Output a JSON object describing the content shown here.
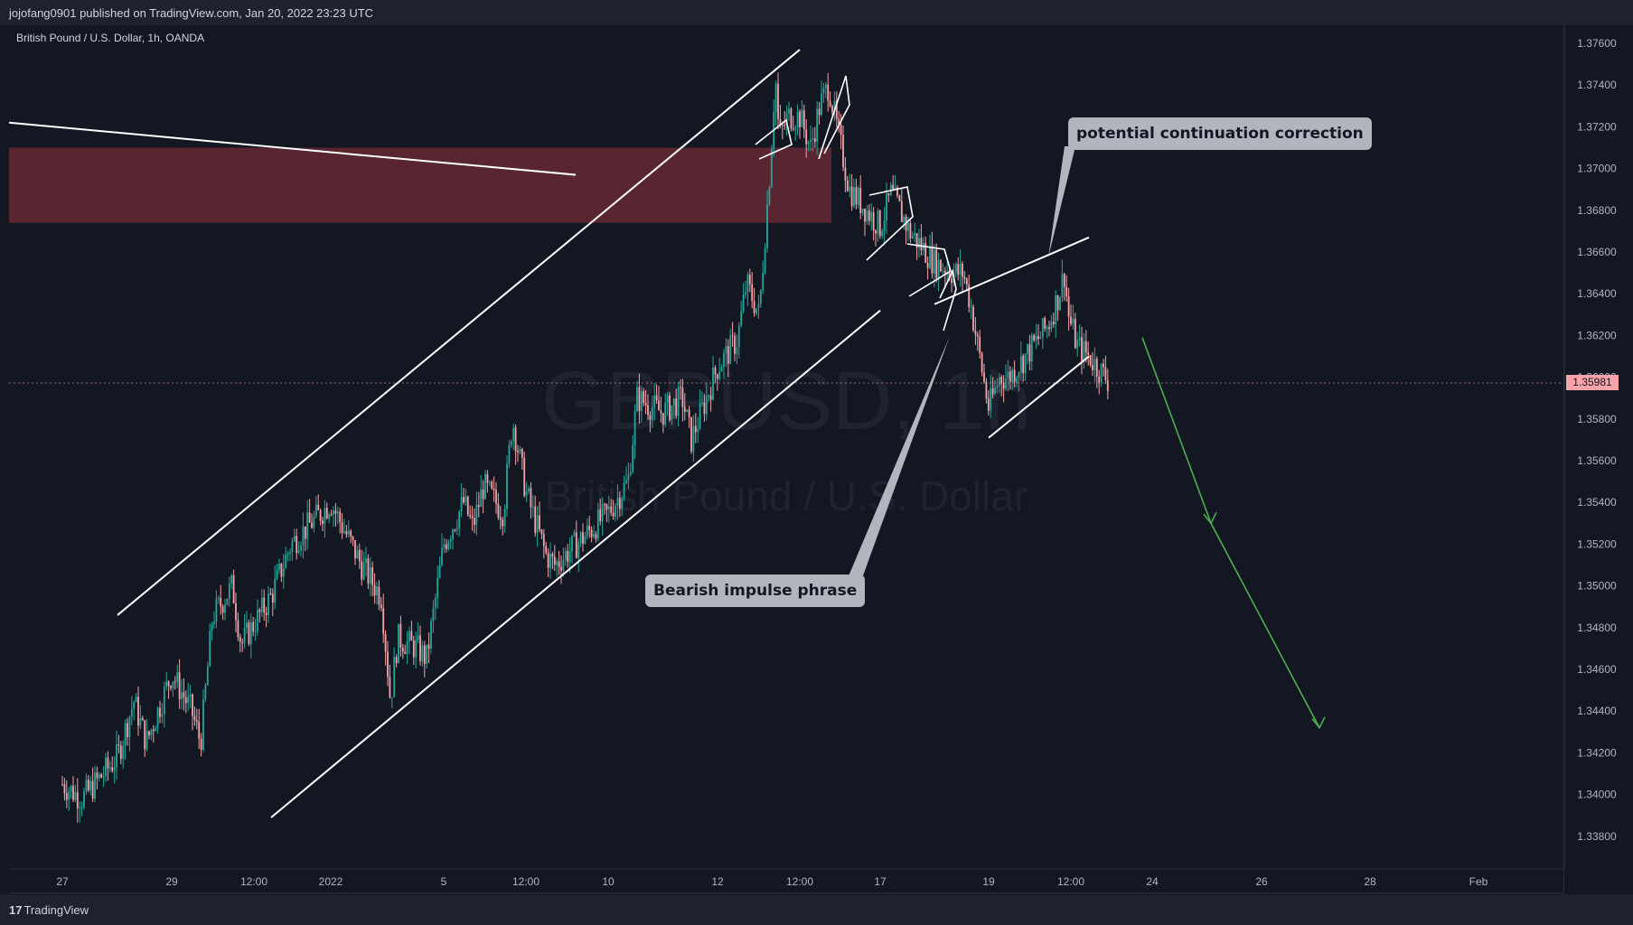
{
  "header": {
    "published_text": "jojofang0901 published on TradingView.com, Jan 20, 2022 23:23 UTC"
  },
  "symbol_info": "British Pound / U.S. Dollar, 1h, OANDA",
  "watermark": {
    "ticker": "GBPUSD, 1h",
    "description": "British Pound / U.S. Dollar"
  },
  "footer": {
    "brand": "TradingView",
    "logo_glyph": "17"
  },
  "current_price": "1.35981",
  "callouts": {
    "correction": "potential continuation correction",
    "impulse": "Bearish impulse phrase"
  },
  "colors": {
    "background": "#131722",
    "up_candle": "#26a69a",
    "down_candle": "#f7a3a8",
    "zone": "#5c2631",
    "lines": "#ffffff",
    "projection": "#4caf50",
    "callout": "#b2b5be"
  },
  "chart_data": {
    "type": "candlestick",
    "symbol": "GBPUSD",
    "timeframe": "1h",
    "exchange": "OANDA",
    "y_axis": {
      "ticks": [
        "1.37600",
        "1.37400",
        "1.37200",
        "1.37000",
        "1.36800",
        "1.36600",
        "1.36400",
        "1.36200",
        "1.36000",
        "1.35800",
        "1.35600",
        "1.35400",
        "1.35200",
        "1.35000",
        "1.34800",
        "1.34600",
        "1.34400",
        "1.34200",
        "1.34000",
        "1.33800"
      ],
      "range": [
        1.3375,
        1.3768
      ]
    },
    "x_axis": {
      "ticks": [
        "27",
        "29",
        "12:00",
        "2022",
        "5",
        "12:00",
        "10",
        "12",
        "12:00",
        "17",
        "19",
        "12:00",
        "24",
        "26",
        "28",
        "Feb"
      ]
    },
    "price_path": [
      [
        "Dec 27",
        1.3405
      ],
      [
        "Dec 27 mid",
        1.3398
      ],
      [
        "Dec 28",
        1.3418
      ],
      [
        "Dec 28 12:00",
        1.3445
      ],
      [
        "Dec 28 late",
        1.3425
      ],
      [
        "Dec 29",
        1.3458
      ],
      [
        "Dec 29 mid",
        1.344
      ],
      [
        "Dec 29 late",
        1.3425
      ],
      [
        "Dec 30",
        1.3485
      ],
      [
        "Dec 30 mid",
        1.35
      ],
      [
        "Dec 30 late",
        1.3472
      ],
      [
        "Dec 31",
        1.3495
      ],
      [
        "Dec 31 mid",
        1.352
      ],
      [
        "2022",
        1.354
      ],
      [
        "Jan 3",
        1.351
      ],
      [
        "Jan 3 mid",
        1.3495
      ],
      [
        "Jan 3 late",
        1.3445
      ],
      [
        "Jan 4",
        1.3475
      ],
      [
        "Jan 4 mid",
        1.347
      ],
      [
        "Jan 4 late",
        1.3465
      ],
      [
        "Jan 5",
        1.352
      ],
      [
        "Jan 5 mid",
        1.354
      ],
      [
        "Jan 5 late",
        1.3528
      ],
      [
        "Jan 6",
        1.3548
      ],
      [
        "Jan 6 mid",
        1.3535
      ],
      [
        "Jan 6 late",
        1.358
      ],
      [
        "Jan 7",
        1.3545
      ],
      [
        "Jan 7 mid",
        1.3515
      ],
      [
        "Jan 7 late",
        1.351
      ],
      [
        "Jan 10",
        1.3535
      ],
      [
        "Jan 10 mid",
        1.355
      ],
      [
        "Jan 10 late",
        1.359
      ],
      [
        "Jan 11",
        1.3583
      ],
      [
        "Jan 11 mid",
        1.359
      ],
      [
        "Jan 11 late",
        1.357
      ],
      [
        "Jan 12",
        1.3605
      ],
      [
        "Jan 12 mid",
        1.3618
      ],
      [
        "Jan 12 late",
        1.3645
      ],
      [
        "Jan 13",
        1.363
      ],
      [
        "Jan 13 early",
        1.37
      ],
      [
        "Jan 13 mid",
        1.3715
      ],
      [
        "Jan 13 late",
        1.3725
      ],
      [
        "Jan 13 12:00",
        1.3745
      ],
      [
        "Jan 14",
        1.3725
      ],
      [
        "Jan 14 early",
        1.371
      ],
      [
        "Jan 14 mid",
        1.373
      ],
      [
        "Jan 14 late",
        1.374
      ],
      [
        "Jan 14 end",
        1.3722
      ],
      [
        "Jan 16",
        1.369
      ],
      [
        "Jan 17",
        1.3672
      ],
      [
        "Jan 17 early",
        1.3688
      ],
      [
        "Jan 17 mid",
        1.368
      ],
      [
        "Jan 17 late",
        1.367
      ],
      [
        "Jan 18",
        1.3655
      ],
      [
        "Jan 18 mid",
        1.365
      ],
      [
        "Jan 18 late",
        1.365
      ],
      [
        "Jan 18 end",
        1.3635
      ],
      [
        "Jan 19 early",
        1.36
      ],
      [
        "Jan 19",
        1.3585
      ],
      [
        "Jan 19 mid",
        1.36
      ],
      [
        "Jan 19 late",
        1.3605
      ],
      [
        "Jan 20 early",
        1.364
      ],
      [
        "Jan 20",
        1.3625
      ],
      [
        "Jan 20 mid",
        1.363
      ],
      [
        "Jan 20 late",
        1.3615
      ],
      [
        "Jan 20 12:00",
        1.365
      ],
      [
        "Jan 21",
        1.361
      ],
      [
        "Jan 21 mid",
        1.3598
      ]
    ],
    "drawings": {
      "resistance_zone": {
        "from": "Dec 26",
        "to": "Jan 14",
        "y_high": 1.371,
        "y_low": 1.3674
      },
      "trendline_descending": {
        "start": [
          "Dec 26",
          1.3722
        ],
        "end": [
          "Jan 9",
          1.3697
        ]
      },
      "ascending_channel_upper": {
        "start": [
          "Dec 28",
          1.3486
        ],
        "end": [
          "Jan 14",
          1.3757
        ]
      },
      "ascending_channel_lower": {
        "start": [
          "Dec 31",
          1.3389
        ],
        "end": [
          "Jan 17",
          1.3632
        ]
      },
      "descending_channel_lower": {
        "start": [
          "Jan 19",
          1.3571
        ],
        "end": [
          "Jan 21",
          1.361
        ]
      },
      "descending_channel_upper": {
        "start": [
          "Jan 18",
          1.3635
        ],
        "end": [
          "Jan 21",
          1.3667
        ]
      },
      "projection": [
        [
          "Jan 22",
          1.3619
        ],
        [
          "Jan 24",
          1.353
        ],
        [
          "Jan 26",
          1.3432
        ]
      ]
    }
  }
}
